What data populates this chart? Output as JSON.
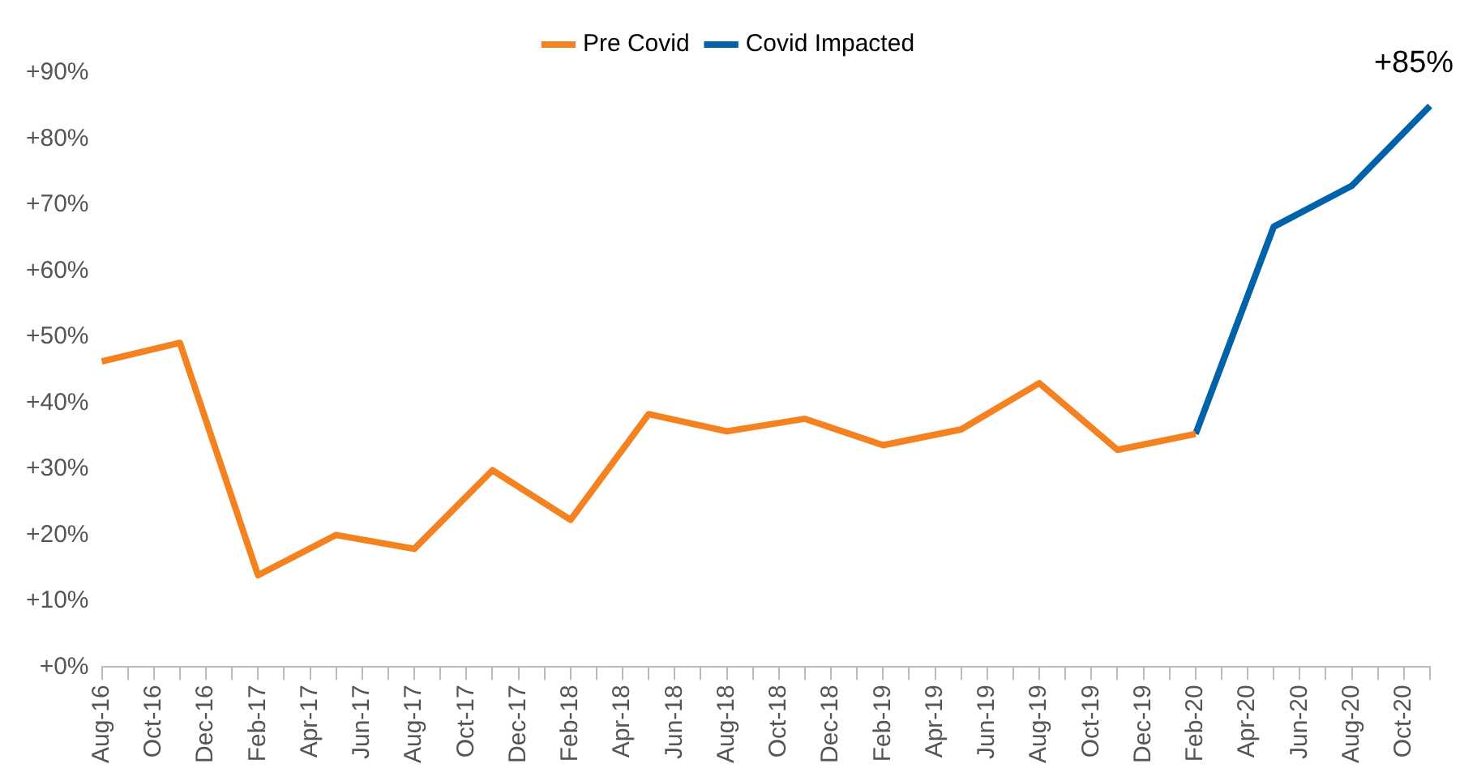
{
  "chart_data": {
    "type": "line",
    "categories": [
      "Aug-16",
      null,
      "Oct-16",
      null,
      "Dec-16",
      null,
      "Feb-17",
      null,
      "Apr-17",
      null,
      "Jun-17",
      null,
      "Aug-17",
      null,
      "Oct-17",
      null,
      "Dec-17",
      null,
      "Feb-18",
      null,
      "Apr-18",
      null,
      "Jun-18",
      null,
      "Aug-18",
      null,
      "Oct-18",
      null,
      "Dec-18",
      null,
      "Feb-19",
      null,
      "Apr-19",
      null,
      "Jun-19",
      null,
      "Aug-19",
      null,
      "Oct-19",
      null,
      "Dec-19",
      null,
      "Feb-20",
      null,
      "Apr-20",
      null,
      "Jun-20",
      null,
      "Aug-20",
      null,
      "Oct-20",
      null
    ],
    "series": [
      {
        "name": "Pre Covid",
        "color": "#f58220",
        "values": [
          46.3,
          null,
          null,
          49.1,
          null,
          null,
          13.9,
          null,
          null,
          20,
          null,
          null,
          17.9,
          null,
          null,
          29.8,
          null,
          null,
          22.3,
          null,
          null,
          38.3,
          null,
          null,
          35.7,
          null,
          null,
          37.6,
          null,
          null,
          33.6,
          null,
          null,
          36,
          null,
          null,
          43,
          null,
          null,
          32.9,
          null,
          null,
          35.3,
          null,
          null,
          null,
          null,
          null,
          null,
          null,
          null,
          null
        ]
      },
      {
        "name": "Covid Impacted",
        "color": "#0062a8",
        "values": [
          null,
          null,
          null,
          null,
          null,
          null,
          null,
          null,
          null,
          null,
          null,
          null,
          null,
          null,
          null,
          null,
          null,
          null,
          null,
          null,
          null,
          null,
          null,
          null,
          null,
          null,
          null,
          null,
          null,
          null,
          null,
          null,
          null,
          null,
          null,
          null,
          null,
          null,
          null,
          null,
          null,
          null,
          35.3,
          null,
          null,
          66.7,
          null,
          null,
          72.9,
          null,
          null,
          85
        ]
      }
    ],
    "ylim": [
      0,
      90
    ],
    "yticks": [
      {
        "value": 0,
        "label": "+0%"
      },
      {
        "value": 10,
        "label": "+10%"
      },
      {
        "value": 20,
        "label": "+20%"
      },
      {
        "value": 30,
        "label": "+30%"
      },
      {
        "value": 40,
        "label": "+40%"
      },
      {
        "value": 50,
        "label": "+50%"
      },
      {
        "value": 60,
        "label": "+60%"
      },
      {
        "value": 70,
        "label": "+70%"
      },
      {
        "value": 80,
        "label": "+80%"
      },
      {
        "value": 90,
        "label": "+90%"
      }
    ],
    "grid": false,
    "legend": "top",
    "annotations": [
      "+85%"
    ]
  }
}
